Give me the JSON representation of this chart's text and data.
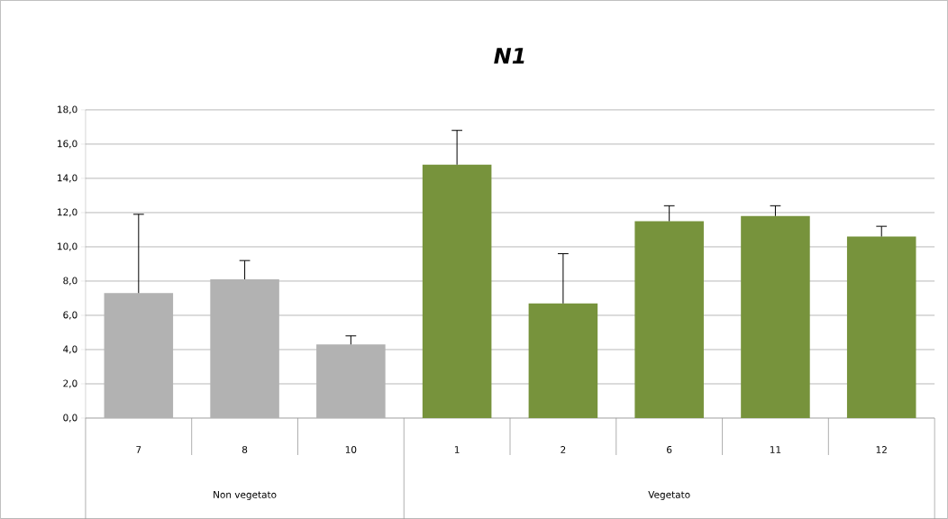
{
  "chart_data": {
    "type": "bar",
    "title": "N1",
    "categories": [
      "7",
      "8",
      "10",
      "1",
      "2",
      "6",
      "11",
      "12"
    ],
    "values": [
      7.3,
      8.1,
      4.3,
      14.8,
      6.7,
      11.5,
      11.8,
      10.6
    ],
    "errors": [
      [
        7.3,
        11.9
      ],
      [
        8.1,
        9.2
      ],
      [
        4.3,
        4.8
      ],
      [
        14.8,
        16.8
      ],
      [
        6.7,
        9.6
      ],
      [
        11.5,
        12.4
      ],
      [
        11.8,
        12.4
      ],
      [
        10.6,
        11.2
      ]
    ],
    "colors": [
      "#b2b2b2",
      "#b2b2b2",
      "#b2b2b2",
      "#77933c",
      "#77933c",
      "#77933c",
      "#77933c",
      "#77933c"
    ],
    "annotations": [
      "Non vegetato",
      "Vegetato"
    ],
    "ylim": [
      0,
      18
    ],
    "yticks": [
      {
        "value": 0,
        "label": "0,0"
      },
      {
        "value": 2,
        "label": "2,0"
      },
      {
        "value": 4,
        "label": "4,0"
      },
      {
        "value": 6,
        "label": "6,0"
      },
      {
        "value": 8,
        "label": "8,0"
      },
      {
        "value": 10,
        "label": "10,0"
      },
      {
        "value": 12,
        "label": "12,0"
      },
      {
        "value": 14,
        "label": "14,0"
      },
      {
        "value": 16,
        "label": "16,0"
      },
      {
        "value": 18,
        "label": "18,0"
      }
    ],
    "grid": "y"
  }
}
